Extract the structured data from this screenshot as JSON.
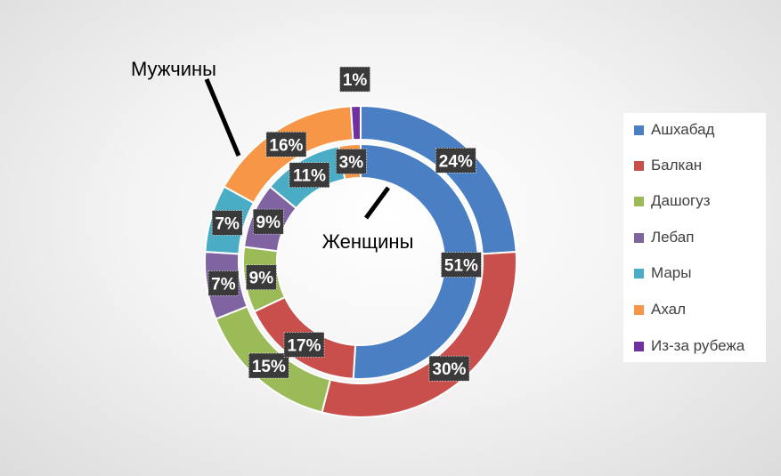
{
  "chart_data": {
    "type": "donut",
    "rings": [
      {
        "name": "Мужчины",
        "ring": "outer",
        "values": [
          24,
          30,
          15,
          7,
          7,
          16,
          1
        ],
        "labels": [
          "24%",
          "30%",
          "15%",
          "7%",
          "7%",
          "16%",
          "1%"
        ]
      },
      {
        "name": "Женщины",
        "ring": "inner",
        "values": [
          51,
          17,
          9,
          9,
          11,
          3,
          0
        ],
        "labels": [
          "51%",
          "17%",
          "9%",
          "9%",
          "11%",
          "3%",
          ""
        ]
      }
    ],
    "categories": [
      "Ашхабад",
      "Балкан",
      "Дашогуз",
      "Лебап",
      "Мары",
      "Ахал",
      "Из-за рубежа"
    ],
    "colors": [
      "#4a7fc4",
      "#c84f4c",
      "#9bbb58",
      "#8064a2",
      "#4bacc6",
      "#f79646",
      "#7030a0"
    ],
    "legend_position": "right"
  }
}
